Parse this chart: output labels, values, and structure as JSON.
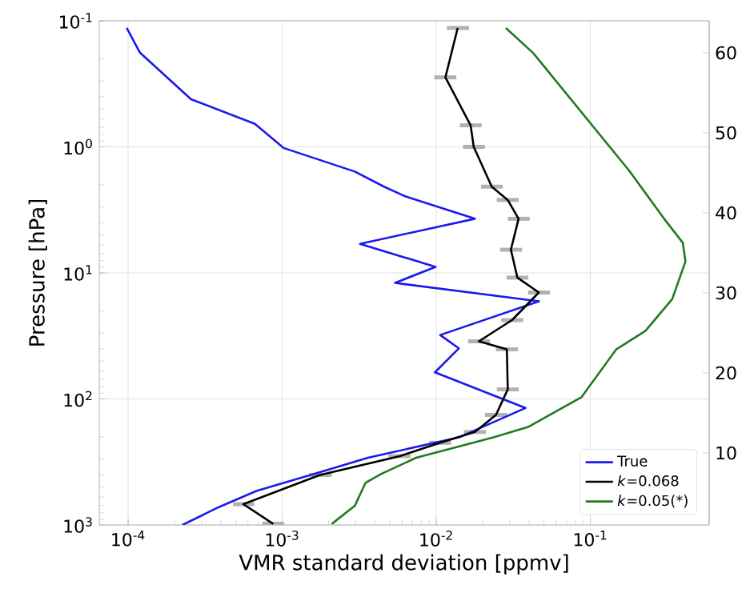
{
  "chart_data": {
    "type": "line",
    "xlabel": "VMR standard deviation [ppmv]",
    "ylabel": "Pressure [hPa]",
    "log": "xy",
    "grid": true,
    "legend": "bottom right",
    "xlim": [
      6.5e-05,
      0.59
    ],
    "ylim": [
      1000,
      0.1
    ],
    "xticks": [
      {
        "value": 0.0001,
        "label": "10$^{-4}$"
      },
      {
        "value": 0.001,
        "label": "10$^{-3}$"
      },
      {
        "value": 0.01,
        "label": "10$^{-2}$"
      },
      {
        "value": 0.1,
        "label": "10$^{-1}$"
      }
    ],
    "yticks": [
      {
        "value": 0.1,
        "label": "10$^{-1}$"
      },
      {
        "value": 1,
        "label": "10$^{0}$"
      },
      {
        "value": 10,
        "label": "10$^{1}$"
      },
      {
        "value": 100,
        "label": "10$^{2}$"
      },
      {
        "value": 1000,
        "label": "10$^{3}$"
      }
    ],
    "y2lim": [
      1,
      64
    ],
    "y2ticks": [
      10,
      20,
      30,
      40,
      50,
      60
    ],
    "series": [
      {
        "name": "True",
        "color": "#1a1aee",
        "x": [
          9.8e-05,
          0.000119,
          0.000256,
          0.000665,
          0.00102,
          0.00296,
          0.00458,
          0.0063,
          0.0178,
          0.0032,
          0.0099,
          0.0054,
          0.0464,
          0.0106,
          0.014,
          0.0098,
          0.0379,
          0.014,
          0.0036,
          0.00176,
          0.00068,
          0.00039,
          0.000225
        ],
        "values": [
          0.114,
          0.178,
          0.419,
          0.656,
          1.02,
          1.57,
          2.07,
          2.47,
          3.72,
          5.88,
          8.96,
          12.0,
          16.8,
          31.1,
          39.7,
          61.5,
          118,
          202,
          293,
          381,
          537,
          719,
          1000
        ]
      },
      {
        "name": "*k*=0.068",
        "color": "#000000",
        "x": [
          0.01377,
          0.01146,
          0.0167,
          0.0175,
          0.0229,
          0.0291,
          0.0342,
          0.0305,
          0.0336,
          0.0463,
          0.031,
          0.0189,
          0.0287,
          0.0291,
          0.0244,
          0.0178,
          0.0106,
          0.0058,
          0.00176,
          0.00056,
          0.000875
        ],
        "values": [
          0.114,
          0.281,
          0.675,
          1.0,
          2.07,
          2.64,
          3.72,
          6.55,
          10.9,
          14.3,
          23.7,
          34.9,
          40.4,
          84,
          134,
          183,
          223,
          284,
          401,
          684,
          980
        ],
        "xerrors": [
          [
            0.0117,
            0.0163
          ],
          [
            0.0097,
            0.0135
          ],
          [
            0.0142,
            0.0197
          ],
          [
            0.0149,
            0.0207
          ],
          [
            0.0195,
            0.027
          ],
          [
            0.0247,
            0.0343
          ],
          [
            0.0291,
            0.0404
          ],
          [
            0.0259,
            0.036
          ],
          [
            0.0286,
            0.0396
          ],
          [
            0.0394,
            0.0546
          ],
          [
            0.0264,
            0.0366
          ],
          [
            0.0161,
            0.0223
          ],
          [
            0.0244,
            0.0339
          ],
          [
            0.0247,
            0.0343
          ],
          [
            0.0207,
            0.0288
          ],
          [
            0.0151,
            0.021
          ],
          [
            0.009,
            0.0125
          ],
          [
            0.0049,
            0.0068
          ],
          [
            0.0015,
            0.0021
          ],
          [
            0.00048,
            0.00066
          ],
          [
            0.00074,
            0.00103
          ]
        ]
      },
      {
        "name": "*k*=0.05(*)",
        "color": "#217a21",
        "x": [
          0.0283,
          0.0427,
          0.179,
          0.301,
          0.398,
          0.414,
          0.34,
          0.228,
          0.147,
          0.0874,
          0.0394,
          0.0235,
          0.0074,
          0.0044,
          0.00347,
          0.00296,
          0.0021
        ],
        "values": [
          0.114,
          0.181,
          1.55,
          3.72,
          5.77,
          8.1,
          16.1,
          28.8,
          40.5,
          97,
          167,
          202,
          293,
          393,
          464,
          705,
          980
        ]
      }
    ]
  }
}
